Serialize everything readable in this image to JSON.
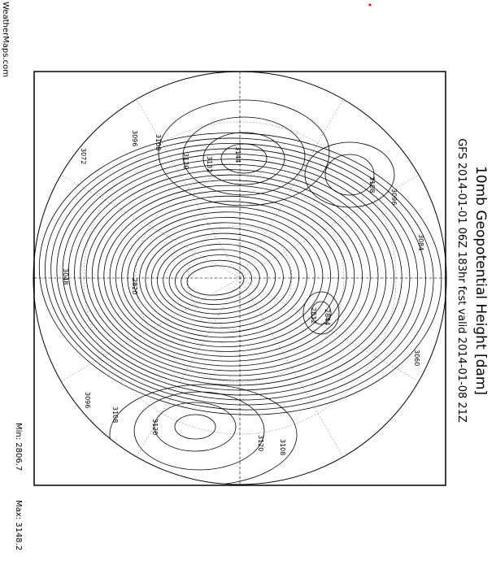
{
  "header": {
    "title": "10mb Geopotential Height [dam]",
    "subtitle": "GFS 2014-01-01 06Z 183hr fcst valid 2014-01-08 21Z"
  },
  "source": "WeatherMaps.com",
  "stats": {
    "min": "Min: 2806.7",
    "max": "Max: 3148.2"
  },
  "contour_labels": [
    "3096",
    "3108",
    "3120",
    "3132",
    "3144",
    "3072",
    "3096",
    "3108",
    "3084",
    "3060",
    "2844",
    "2832",
    "2820",
    "3048",
    "3096",
    "3108",
    "3120",
    "3120",
    "3108"
  ]
}
